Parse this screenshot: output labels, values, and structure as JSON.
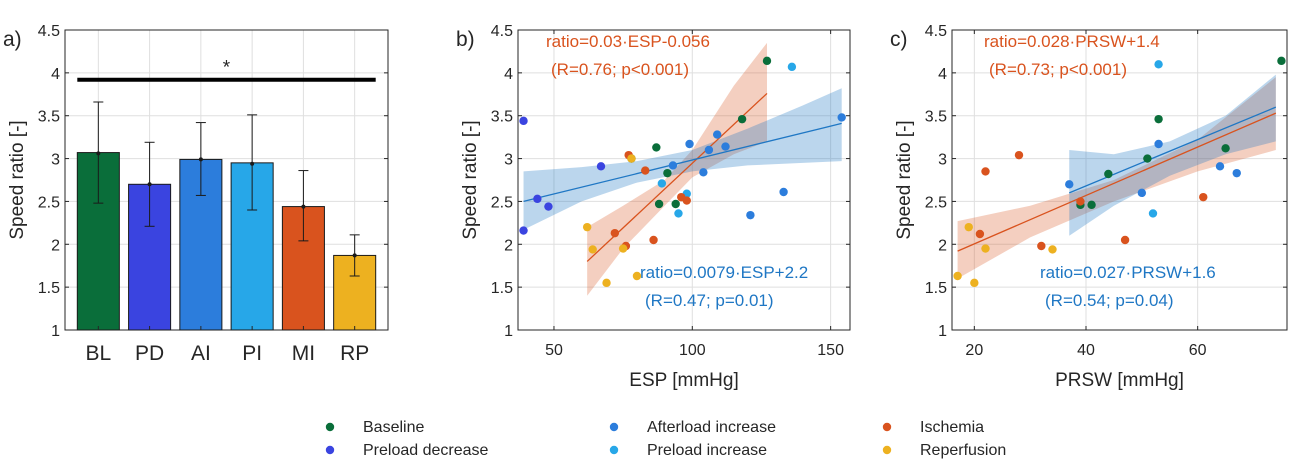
{
  "colors": {
    "baseline": "#0a6e3a",
    "preload_decrease": "#3a44e0",
    "afterload_increase": "#2c7ddc",
    "preload_increase": "#27a7e8",
    "ischemia": "#d9531e",
    "reperfusion": "#edb120",
    "fit_esp_orange": "#d9531e",
    "fit_esp_blue": "#1f77c4"
  },
  "legend": [
    {
      "key": "baseline",
      "label": "Baseline"
    },
    {
      "key": "preload_decrease",
      "label": "Preload decrease"
    },
    {
      "key": "afterload_increase",
      "label": "Afterload increase"
    },
    {
      "key": "preload_increase",
      "label": "Preload increase"
    },
    {
      "key": "ischemia",
      "label": "Ischemia"
    },
    {
      "key": "reperfusion",
      "label": "Reperfusion"
    }
  ],
  "chart_data": [
    {
      "panel_label": "a)",
      "type": "bar",
      "categories": [
        "BL",
        "PD",
        "AI",
        "PI",
        "MI",
        "RP"
      ],
      "color_keys": [
        "baseline",
        "preload_decrease",
        "afterload_increase",
        "preload_increase",
        "ischemia",
        "reperfusion"
      ],
      "values": [
        3.07,
        2.7,
        2.99,
        2.95,
        2.44,
        1.87
      ],
      "err_low": [
        2.48,
        2.21,
        2.57,
        2.4,
        2.04,
        1.63
      ],
      "err_high": [
        3.66,
        3.19,
        3.42,
        3.51,
        2.86,
        2.11
      ],
      "means": [
        3.06,
        2.7,
        2.99,
        2.94,
        2.44,
        1.87
      ],
      "significance": {
        "from": "BL",
        "to": "RP",
        "y": 3.92,
        "label": "*"
      },
      "ylabel": "Speed ratio [-]",
      "xlabel": "",
      "ylim": [
        1,
        4.5
      ],
      "yticks": [
        1,
        1.5,
        2,
        2.5,
        3,
        3.5,
        4,
        4.5
      ],
      "grid": true
    },
    {
      "panel_label": "b)",
      "type": "scatter",
      "xlabel": "ESP [mmHg]",
      "ylabel": "Speed ratio [-]",
      "xlim": [
        37,
        157
      ],
      "ylim": [
        1,
        4.5
      ],
      "xticks": [
        50,
        100,
        150
      ],
      "yticks": [
        1,
        1.5,
        2,
        2.5,
        3,
        3.5,
        4,
        4.5
      ],
      "grid": true,
      "series": [
        {
          "key": "baseline",
          "points": [
            [
              78,
              3.0
            ],
            [
              87,
              3.13
            ],
            [
              88,
              2.47
            ],
            [
              91,
              2.83
            ],
            [
              94,
              2.47
            ],
            [
              118,
              3.46
            ],
            [
              127,
              4.14
            ]
          ]
        },
        {
          "key": "preload_decrease",
          "points": [
            [
              39,
              3.44
            ],
            [
              39,
              2.16
            ],
            [
              44,
              2.53
            ],
            [
              48,
              2.44
            ],
            [
              67,
              2.91
            ]
          ]
        },
        {
          "key": "afterload_increase",
          "points": [
            [
              93,
              2.92
            ],
            [
              99,
              3.17
            ],
            [
              104,
              2.84
            ],
            [
              106,
              3.1
            ],
            [
              109,
              3.28
            ],
            [
              112,
              3.14
            ],
            [
              121,
              2.34
            ],
            [
              133,
              2.61
            ],
            [
              154,
              3.48
            ]
          ]
        },
        {
          "key": "preload_increase",
          "points": [
            [
              89,
              2.71
            ],
            [
              95,
              2.36
            ],
            [
              98,
              2.59
            ],
            [
              136,
              4.07
            ]
          ]
        },
        {
          "key": "ischemia",
          "points": [
            [
              77,
              3.04
            ],
            [
              72,
              2.13
            ],
            [
              76,
              1.98
            ],
            [
              83,
              2.86
            ],
            [
              86,
              2.05
            ],
            [
              96,
              2.55
            ],
            [
              98,
              2.51
            ]
          ]
        },
        {
          "key": "reperfusion",
          "points": [
            [
              62,
              2.2
            ],
            [
              64,
              1.94
            ],
            [
              69,
              1.55
            ],
            [
              75,
              1.95
            ],
            [
              78,
              3.0
            ],
            [
              80,
              1.63
            ]
          ]
        }
      ],
      "fits": [
        {
          "key": "fit_esp_orange",
          "equation": "ratio=0.03·ESP-0.056",
          "stats": "(R=0.76; p<0.001)",
          "x_range": [
            62,
            127
          ],
          "y_range": [
            1.8,
            3.76
          ],
          "band": {
            "x": [
              62,
              75,
              90,
              100,
              115,
              127
            ],
            "lower": [
              1.4,
              1.95,
              2.45,
              2.78,
              3.05,
              3.2
            ],
            "upper": [
              2.2,
              2.45,
              2.75,
              3.1,
              3.85,
              4.35
            ]
          }
        },
        {
          "key": "fit_esp_blue",
          "equation": "ratio=0.0079·ESP+2.2",
          "stats": "(R=0.47; p=0.01)",
          "x_range": [
            39,
            154
          ],
          "y_range": [
            2.5,
            3.41
          ],
          "band": {
            "x": [
              39,
              60,
              80,
              100,
              120,
              140,
              154
            ],
            "lower": [
              2.17,
              2.5,
              2.72,
              2.85,
              2.92,
              2.95,
              2.97
            ],
            "upper": [
              2.85,
              2.9,
              2.97,
              3.1,
              3.35,
              3.62,
              3.82
            ]
          }
        }
      ]
    },
    {
      "panel_label": "c)",
      "type": "scatter",
      "xlabel": "PRSW [mmHg]",
      "ylabel": "Speed ratio [-]",
      "xlim": [
        16,
        76
      ],
      "ylim": [
        1,
        4.5
      ],
      "xticks": [
        20,
        40,
        60
      ],
      "yticks": [
        1,
        1.5,
        2,
        2.5,
        3,
        3.5,
        4,
        4.5
      ],
      "grid": true,
      "series": [
        {
          "key": "baseline",
          "points": [
            [
              39,
              2.46
            ],
            [
              41,
              2.46
            ],
            [
              44,
              2.82
            ],
            [
              51,
              3.0
            ],
            [
              53,
              3.46
            ],
            [
              65,
              3.12
            ],
            [
              75,
              4.14
            ]
          ]
        },
        {
          "key": "preload_decrease",
          "points": []
        },
        {
          "key": "afterload_increase",
          "points": [
            [
              37,
              2.7
            ],
            [
              50,
              2.6
            ],
            [
              53,
              3.17
            ],
            [
              64,
              2.91
            ],
            [
              67,
              2.83
            ]
          ]
        },
        {
          "key": "preload_increase",
          "points": [
            [
              52,
              2.36
            ],
            [
              53,
              4.1
            ]
          ]
        },
        {
          "key": "ischemia",
          "points": [
            [
              21,
              2.12
            ],
            [
              22,
              2.85
            ],
            [
              28,
              3.04
            ],
            [
              32,
              1.98
            ],
            [
              39,
              2.5
            ],
            [
              47,
              2.05
            ],
            [
              61,
              2.55
            ]
          ]
        },
        {
          "key": "reperfusion",
          "points": [
            [
              17,
              1.63
            ],
            [
              19,
              2.2
            ],
            [
              20,
              1.55
            ],
            [
              22,
              1.95
            ],
            [
              34,
              1.94
            ]
          ]
        }
      ],
      "fits": [
        {
          "key": "fit_esp_orange",
          "equation": "ratio=0.028·PRSW+1.4",
          "stats": "(R=0.73; p<0.001)",
          "x_range": [
            17,
            74
          ],
          "y_range": [
            1.92,
            3.53
          ],
          "band": {
            "x": [
              17,
              30,
              45,
              60,
              74
            ],
            "lower": [
              1.6,
              2.08,
              2.5,
              2.85,
              3.1
            ],
            "upper": [
              2.27,
              2.45,
              2.75,
              3.22,
              3.95
            ]
          }
        },
        {
          "key": "fit_esp_blue",
          "equation": "ratio=0.027·PRSW+1.6",
          "stats": "(R=0.54; p=0.04)",
          "x_range": [
            37,
            74
          ],
          "y_range": [
            2.6,
            3.6
          ],
          "band": {
            "x": [
              37,
              45,
              55,
              65,
              74
            ],
            "lower": [
              2.1,
              2.45,
              2.8,
              3.05,
              3.2
            ],
            "upper": [
              3.1,
              3.05,
              3.2,
              3.5,
              3.98
            ]
          }
        }
      ]
    }
  ]
}
